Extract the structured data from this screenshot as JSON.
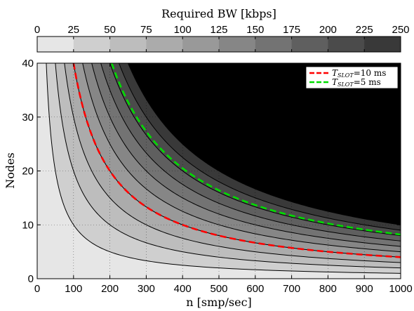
{
  "chart_data": {
    "type": "heatmap",
    "title": "",
    "xlabel": "n [smp/sec]",
    "ylabel": "Nodes",
    "xlim": [
      0,
      1000
    ],
    "ylim": [
      0,
      40
    ],
    "xticks": [
      "0",
      "100",
      "200",
      "300",
      "400",
      "500",
      "600",
      "700",
      "800",
      "900",
      "1000"
    ],
    "yticks": [
      "0",
      "10",
      "20",
      "30",
      "40"
    ],
    "grid": true,
    "colorbar": {
      "label": "Required BW [kbps]",
      "ticks": [
        "0",
        "25",
        "50",
        "75",
        "100",
        "125",
        "150",
        "175",
        "200",
        "225",
        "250"
      ],
      "levels": [
        0,
        25,
        50,
        75,
        100,
        125,
        150,
        175,
        200,
        225,
        250
      ],
      "colors": [
        "#e6e6e6",
        "#cfcfcf",
        "#bdbdbd",
        "#ababab",
        "#999999",
        "#868686",
        "#737373",
        "#5f5f5f",
        "#4b4b4b",
        "#393939"
      ],
      "overflow_color": "#000000"
    },
    "surface": "BW = 0.025 * n * Nodes",
    "legend_position": "top-right",
    "series": [
      {
        "name": "T_SLOT=10 ms",
        "label_main": "T",
        "label_sub": "SLOT",
        "label_rest": "=10 ms",
        "color": "#ff0000",
        "style": "dashed",
        "x": [
          100,
          150,
          200,
          300,
          400,
          500,
          600,
          700,
          800,
          900,
          1000
        ],
        "y": [
          40,
          27,
          20,
          13.3,
          10,
          8,
          6.7,
          5.7,
          5,
          4.4,
          4
        ]
      },
      {
        "name": "T_SLOT=5 ms",
        "label_main": "T",
        "label_sub": "SLOT",
        "label_rest": "=5 ms",
        "color": "#00dd00",
        "style": "dashed",
        "x": [
          205,
          250,
          300,
          400,
          500,
          600,
          700,
          800,
          900,
          1000
        ],
        "y": [
          40,
          33,
          28,
          21,
          17,
          14,
          12,
          10.5,
          9.3,
          8.4
        ]
      }
    ]
  }
}
